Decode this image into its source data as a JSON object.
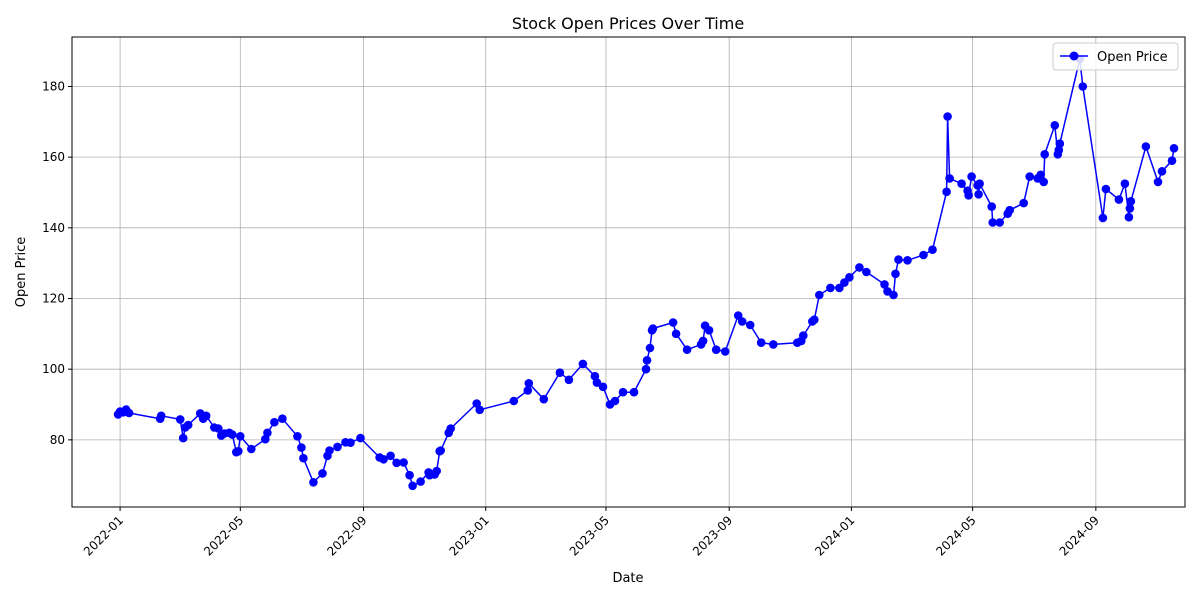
{
  "chart_data": {
    "type": "line",
    "title": "Stock Open Prices Over Time",
    "xlabel": "Date",
    "ylabel": "Open Price",
    "grid": true,
    "legend_position": "top-right",
    "xlim": [
      "2021-11-14",
      "2024-11-29"
    ],
    "ylim": [
      61,
      194
    ],
    "x_ticks": [
      "2022-01-01",
      "2022-05-01",
      "2022-09-01",
      "2023-01-01",
      "2023-05-01",
      "2023-09-01",
      "2024-01-01",
      "2024-05-01",
      "2024-09-01"
    ],
    "x_tick_labels": [
      "2022-01",
      "2022-05",
      "2022-09",
      "2023-01",
      "2023-05",
      "2023-09",
      "2024-01",
      "2024-05",
      "2024-09"
    ],
    "y_ticks": [
      80,
      100,
      120,
      140,
      160,
      180
    ],
    "y_tick_labels": [
      "80",
      "100",
      "120",
      "140",
      "160",
      "180"
    ],
    "series": [
      {
        "name": "Open Price",
        "color": "#0000ff",
        "points": [
          [
            "2021-12-30",
            87.2
          ],
          [
            "2022-01-01",
            88.0
          ],
          [
            "2022-01-04",
            87.8
          ],
          [
            "2022-01-07",
            88.6
          ],
          [
            "2022-01-10",
            87.6
          ],
          [
            "2022-02-10",
            86.0
          ],
          [
            "2022-02-11",
            86.8
          ],
          [
            "2022-03-02",
            85.8
          ],
          [
            "2022-03-05",
            80.5
          ],
          [
            "2022-03-07",
            83.5
          ],
          [
            "2022-03-10",
            84.2
          ],
          [
            "2022-03-22",
            87.5
          ],
          [
            "2022-03-25",
            86.0
          ],
          [
            "2022-03-28",
            86.8
          ],
          [
            "2022-04-05",
            83.5
          ],
          [
            "2022-04-09",
            83.2
          ],
          [
            "2022-04-12",
            81.2
          ],
          [
            "2022-04-15",
            81.8
          ],
          [
            "2022-04-20",
            82.0
          ],
          [
            "2022-04-23",
            81.5
          ],
          [
            "2022-04-27",
            76.5
          ],
          [
            "2022-04-29",
            76.8
          ],
          [
            "2022-05-01",
            81.0
          ],
          [
            "2022-05-12",
            77.4
          ],
          [
            "2022-05-26",
            80.2
          ],
          [
            "2022-05-28",
            82.0
          ],
          [
            "2022-06-04",
            85.0
          ],
          [
            "2022-06-12",
            86.0
          ],
          [
            "2022-06-27",
            81.0
          ],
          [
            "2022-07-01",
            77.8
          ],
          [
            "2022-07-03",
            74.8
          ],
          [
            "2022-07-13",
            68.0
          ],
          [
            "2022-07-22",
            70.5
          ],
          [
            "2022-07-27",
            75.5
          ],
          [
            "2022-07-29",
            77.0
          ],
          [
            "2022-08-06",
            78.0
          ],
          [
            "2022-08-14",
            79.3
          ],
          [
            "2022-08-19",
            79.2
          ],
          [
            "2022-08-29",
            80.5
          ],
          [
            "2022-09-17",
            75.0
          ],
          [
            "2022-09-21",
            74.5
          ],
          [
            "2022-09-28",
            75.5
          ],
          [
            "2022-10-04",
            73.5
          ],
          [
            "2022-10-11",
            73.6
          ],
          [
            "2022-10-17",
            70.0
          ],
          [
            "2022-10-20",
            67.0
          ],
          [
            "2022-10-28",
            68.2
          ],
          [
            "2022-11-05",
            70.8
          ],
          [
            "2022-11-06",
            70.0
          ],
          [
            "2022-11-11",
            70.2
          ],
          [
            "2022-11-13",
            71.2
          ],
          [
            "2022-11-16",
            76.8
          ],
          [
            "2022-11-17",
            77.0
          ],
          [
            "2022-11-25",
            82.0
          ],
          [
            "2022-11-27",
            83.2
          ],
          [
            "2022-12-23",
            90.3
          ],
          [
            "2022-12-26",
            88.5
          ],
          [
            "2023-01-29",
            91.0
          ],
          [
            "2023-02-12",
            94.0
          ],
          [
            "2023-02-13",
            96.0
          ],
          [
            "2023-02-28",
            91.5
          ],
          [
            "2023-03-16",
            99.0
          ],
          [
            "2023-03-25",
            97.0
          ],
          [
            "2023-04-08",
            101.5
          ],
          [
            "2023-04-20",
            98.0
          ],
          [
            "2023-04-22",
            96.2
          ],
          [
            "2023-04-28",
            95.0
          ],
          [
            "2023-05-05",
            90.0
          ],
          [
            "2023-05-10",
            91.0
          ],
          [
            "2023-05-18",
            93.5
          ],
          [
            "2023-05-29",
            93.5
          ],
          [
            "2023-06-10",
            100.0
          ],
          [
            "2023-06-11",
            102.5
          ],
          [
            "2023-06-14",
            106.0
          ],
          [
            "2023-06-16",
            111.0
          ],
          [
            "2023-06-17",
            111.5
          ],
          [
            "2023-07-07",
            113.2
          ],
          [
            "2023-07-10",
            110.0
          ],
          [
            "2023-07-21",
            105.5
          ],
          [
            "2023-08-04",
            107.0
          ],
          [
            "2023-08-06",
            108.0
          ],
          [
            "2023-08-08",
            112.3
          ],
          [
            "2023-08-12",
            111.0
          ],
          [
            "2023-08-19",
            105.5
          ],
          [
            "2023-08-28",
            105.0
          ],
          [
            "2023-09-10",
            115.2
          ],
          [
            "2023-09-14",
            113.5
          ],
          [
            "2023-09-22",
            112.5
          ],
          [
            "2023-10-03",
            107.5
          ],
          [
            "2023-10-15",
            107.0
          ],
          [
            "2023-11-08",
            107.5
          ],
          [
            "2023-11-12",
            108.0
          ],
          [
            "2023-11-14",
            109.5
          ],
          [
            "2023-11-23",
            113.5
          ],
          [
            "2023-11-25",
            114.0
          ],
          [
            "2023-11-30",
            121.0
          ],
          [
            "2023-12-11",
            123.0
          ],
          [
            "2023-12-20",
            123.0
          ],
          [
            "2023-12-25",
            124.5
          ],
          [
            "2023-12-30",
            126.0
          ],
          [
            "2024-01-09",
            128.8
          ],
          [
            "2024-01-16",
            127.5
          ],
          [
            "2024-02-03",
            124.0
          ],
          [
            "2024-02-06",
            122.0
          ],
          [
            "2024-02-12",
            121.0
          ],
          [
            "2024-02-14",
            127.0
          ],
          [
            "2024-02-17",
            131.0
          ],
          [
            "2024-02-26",
            130.8
          ],
          [
            "2024-03-13",
            132.3
          ],
          [
            "2024-03-22",
            133.8
          ],
          [
            "2024-04-05",
            150.2
          ],
          [
            "2024-04-06",
            171.5
          ],
          [
            "2024-04-08",
            154.0
          ],
          [
            "2024-04-20",
            152.5
          ],
          [
            "2024-04-26",
            150.5
          ],
          [
            "2024-04-27",
            149.2
          ],
          [
            "2024-04-30",
            154.5
          ],
          [
            "2024-05-06",
            152.0
          ],
          [
            "2024-05-08",
            152.5
          ],
          [
            "2024-05-07",
            149.5
          ],
          [
            "2024-05-20",
            146.0
          ],
          [
            "2024-05-21",
            141.5
          ],
          [
            "2024-05-28",
            141.5
          ],
          [
            "2024-06-05",
            144.0
          ],
          [
            "2024-06-07",
            145.0
          ],
          [
            "2024-06-21",
            147.0
          ],
          [
            "2024-06-27",
            154.5
          ],
          [
            "2024-07-05",
            154.0
          ],
          [
            "2024-07-08",
            155.0
          ],
          [
            "2024-07-11",
            153.0
          ],
          [
            "2024-07-12",
            160.8
          ],
          [
            "2024-07-22",
            169.0
          ],
          [
            "2024-07-25",
            160.8
          ],
          [
            "2024-07-26",
            162.0
          ],
          [
            "2024-07-27",
            163.8
          ],
          [
            "2024-08-16",
            187.8
          ],
          [
            "2024-08-19",
            180.0
          ],
          [
            "2024-09-08",
            142.8
          ],
          [
            "2024-09-11",
            151.0
          ],
          [
            "2024-09-24",
            148.0
          ],
          [
            "2024-09-30",
            152.5
          ],
          [
            "2024-10-04",
            143.0
          ],
          [
            "2024-10-05",
            145.5
          ],
          [
            "2024-10-06",
            147.5
          ],
          [
            "2024-10-21",
            163.0
          ],
          [
            "2024-11-02",
            153.0
          ],
          [
            "2024-11-06",
            156.0
          ],
          [
            "2024-11-16",
            159.0
          ],
          [
            "2024-11-18",
            162.5
          ]
        ]
      }
    ]
  }
}
